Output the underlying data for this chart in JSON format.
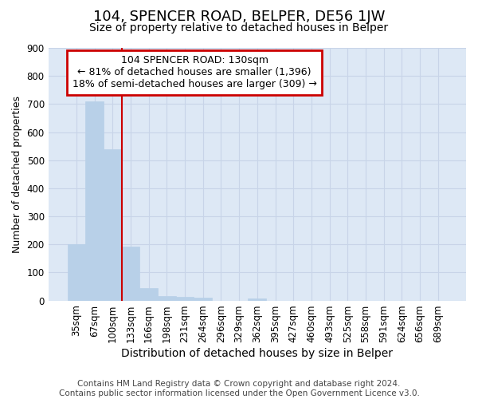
{
  "title": "104, SPENCER ROAD, BELPER, DE56 1JW",
  "subtitle": "Size of property relative to detached houses in Belper",
  "xlabel": "Distribution of detached houses by size in Belper",
  "ylabel": "Number of detached properties",
  "categories": [
    "35sqm",
    "67sqm",
    "100sqm",
    "133sqm",
    "166sqm",
    "198sqm",
    "231sqm",
    "264sqm",
    "296sqm",
    "329sqm",
    "362sqm",
    "395sqm",
    "427sqm",
    "460sqm",
    "493sqm",
    "525sqm",
    "558sqm",
    "591sqm",
    "624sqm",
    "656sqm",
    "689sqm"
  ],
  "values": [
    200,
    710,
    540,
    193,
    43,
    17,
    13,
    10,
    0,
    0,
    8,
    0,
    0,
    0,
    0,
    0,
    0,
    0,
    0,
    0,
    0
  ],
  "bar_color": "#b8d0e8",
  "bar_edge_color": "#b8d0e8",
  "vline_x": 2.5,
  "vline_color": "#cc0000",
  "annotation_text": "104 SPENCER ROAD: 130sqm\n← 81% of detached houses are smaller (1,396)\n18% of semi-detached houses are larger (309) →",
  "annotation_box_color": "#ffffff",
  "annotation_box_edge_color": "#cc0000",
  "ylim": [
    0,
    900
  ],
  "yticks": [
    0,
    100,
    200,
    300,
    400,
    500,
    600,
    700,
    800,
    900
  ],
  "grid_color": "#c8d4e8",
  "plot_bg_color": "#dde8f5",
  "fig_bg_color": "#ffffff",
  "footer": "Contains HM Land Registry data © Crown copyright and database right 2024.\nContains public sector information licensed under the Open Government Licence v3.0.",
  "title_fontsize": 13,
  "subtitle_fontsize": 10,
  "xlabel_fontsize": 10,
  "ylabel_fontsize": 9,
  "tick_fontsize": 8.5,
  "annotation_fontsize": 9,
  "footer_fontsize": 7.5
}
